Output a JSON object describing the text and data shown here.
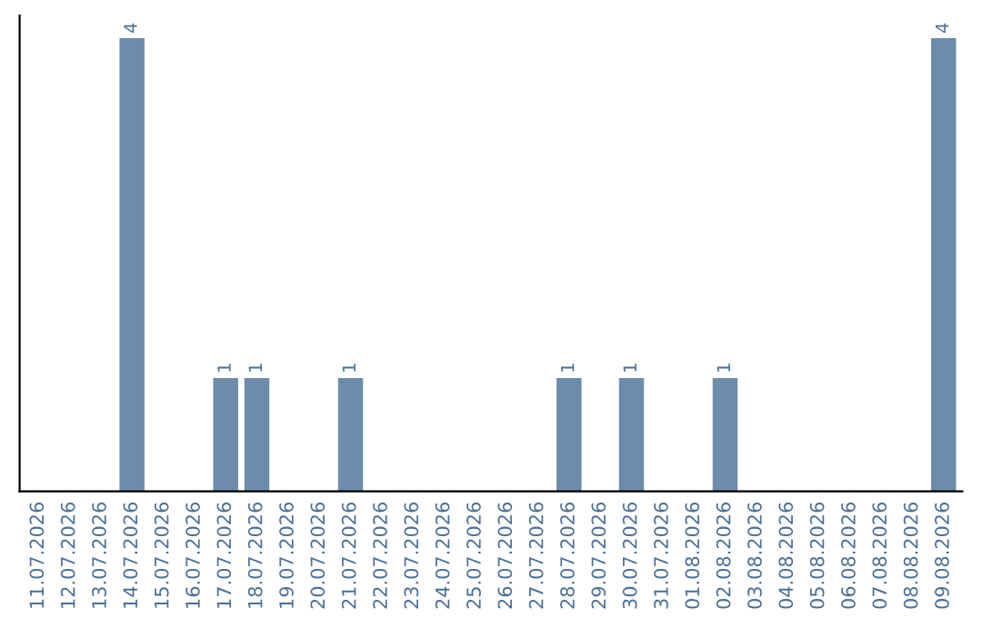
{
  "chart_data": {
    "type": "bar",
    "categories": [
      "11.07.2026",
      "12.07.2026",
      "13.07.2026",
      "14.07.2026",
      "15.07.2026",
      "16.07.2026",
      "17.07.2026",
      "18.07.2026",
      "19.07.2026",
      "20.07.2026",
      "21.07.2026",
      "22.07.2026",
      "23.07.2026",
      "24.07.2026",
      "25.07.2026",
      "26.07.2026",
      "27.07.2026",
      "28.07.2026",
      "29.07.2026",
      "30.07.2026",
      "31.07.2026",
      "01.08.2026",
      "02.08.2026",
      "03.08.2026",
      "04.08.2026",
      "05.08.2026",
      "06.08.2026",
      "07.08.2026",
      "08.08.2026",
      "09.08.2026"
    ],
    "values": [
      0,
      0,
      0,
      4,
      0,
      0,
      1,
      1,
      0,
      0,
      1,
      0,
      0,
      0,
      0,
      0,
      0,
      1,
      0,
      1,
      0,
      0,
      1,
      0,
      0,
      0,
      0,
      0,
      0,
      4
    ],
    "value_labels": [
      null,
      null,
      null,
      "4",
      null,
      null,
      "1",
      "1",
      null,
      null,
      "1",
      null,
      null,
      null,
      null,
      null,
      null,
      "1",
      null,
      "1",
      null,
      null,
      "1",
      null,
      null,
      null,
      null,
      null,
      null,
      "4"
    ],
    "color": "#6d8caa",
    "tick_labels": "x",
    "grid": false,
    "legend": false
  }
}
